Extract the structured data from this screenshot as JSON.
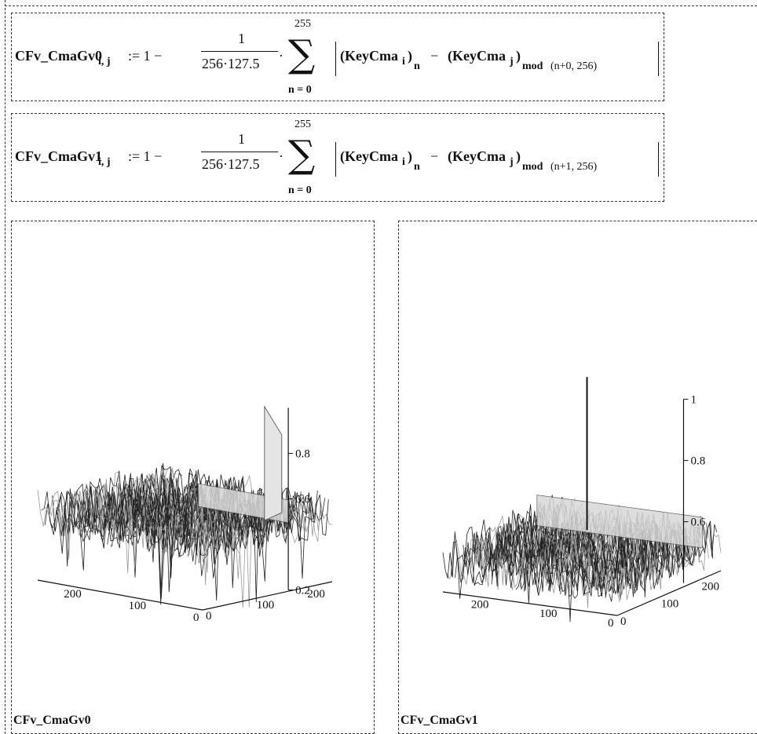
{
  "formula0": {
    "lhs": "CFv_CmaGv0",
    "lhs_sub": "i, j",
    "assign": ":= 1 −",
    "numerator": "1",
    "denominator": "256·127.5",
    "dot": "·",
    "sum_upper": "255",
    "sum_lower": "n = 0",
    "key1": "(KeyCma",
    "key1_sub": "i",
    "sub_n": "n",
    "minus": "−",
    "key2": "(KeyCma",
    "key2_sub": "j",
    "mod": "mod",
    "mod_args": "(n+0, 256)"
  },
  "formula1": {
    "lhs": "CFv_CmaGv1",
    "lhs_sub": "i, j",
    "assign": ":= 1 −",
    "numerator": "1",
    "denominator": "256·127.5",
    "dot": "·",
    "sum_upper": "255",
    "sum_lower": "n = 0",
    "key1": "(KeyCma",
    "key1_sub": "i",
    "sub_n": "n",
    "minus": "−",
    "key2": "(KeyCma",
    "key2_sub": "j",
    "mod": "mod",
    "mod_args": "(n+1, 256)"
  },
  "chart_data": [
    {
      "type": "surface3d",
      "title": "CFv_CmaGv0",
      "x_ticks": [
        "200",
        "100",
        "0"
      ],
      "y_ticks": [
        "0",
        "100",
        "200"
      ],
      "z_ticks": [
        "0.2",
        "0.6",
        "0.8"
      ],
      "z_range": [
        0.2,
        1.0
      ],
      "noise_level": 0.5,
      "spike": 1.0,
      "ridge_level": 0.6
    },
    {
      "type": "surface3d",
      "title": "CFv_CmaGv1",
      "x_ticks": [
        "200",
        "100",
        "0"
      ],
      "y_ticks": [
        "0",
        "100",
        "200"
      ],
      "z_ticks": [
        "0.6",
        "0.8",
        "1"
      ],
      "z_range": [
        0.4,
        1.0
      ],
      "noise_level": 0.5,
      "spike": 1.0,
      "ridge_level": 0.6
    }
  ]
}
